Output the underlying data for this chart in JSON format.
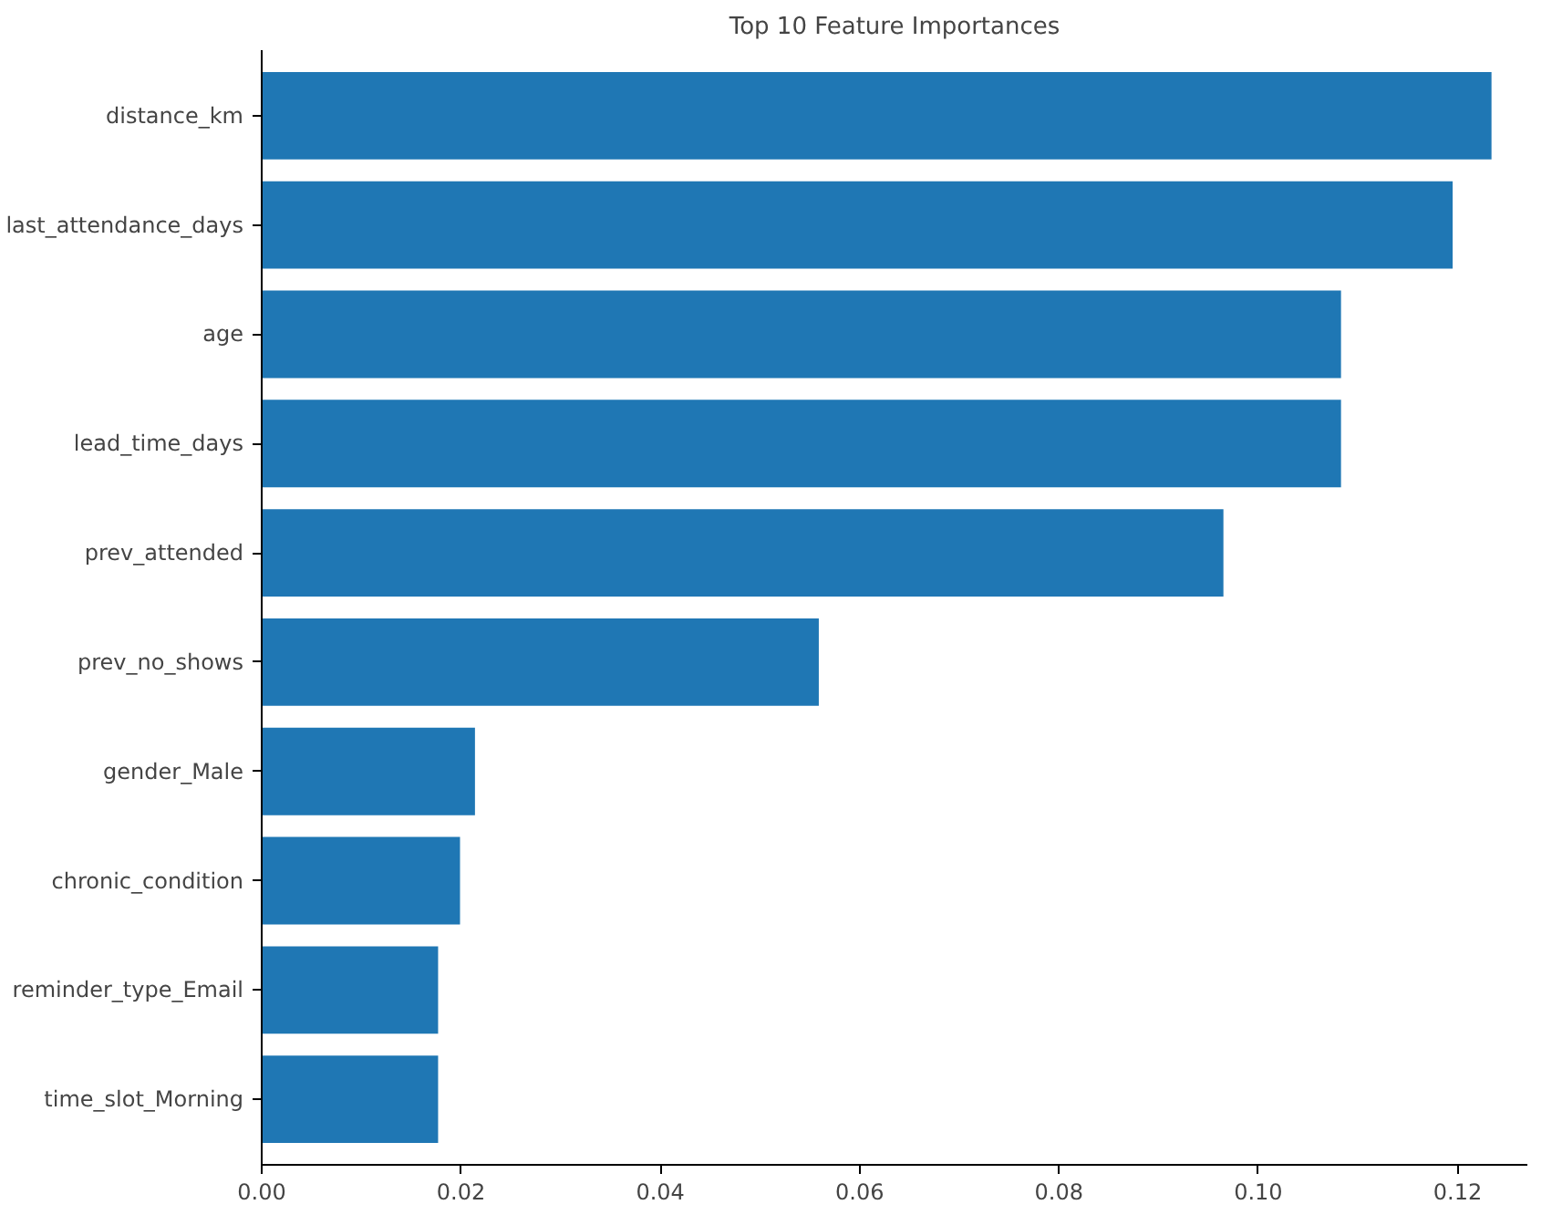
{
  "chart_data": {
    "type": "bar",
    "orientation": "horizontal",
    "title": "Top 10 Feature Importances",
    "categories": [
      "distance_km",
      "last_attendance_days",
      "age",
      "lead_time_days",
      "prev_attended",
      "prev_no_shows",
      "gender_Male",
      "chronic_condition",
      "reminder_type_Email",
      "time_slot_Morning"
    ],
    "values": [
      0.1234,
      0.1195,
      0.1083,
      0.1083,
      0.0965,
      0.0559,
      0.0214,
      0.0199,
      0.0177,
      0.0177
    ],
    "color": "#1f77b4",
    "xlim": [
      0,
      0.127
    ],
    "xticks": [
      {
        "value": 0,
        "label": "0.00"
      },
      {
        "value": 0.02,
        "label": "0.02"
      },
      {
        "value": 0.04,
        "label": "0.04"
      },
      {
        "value": 0.06,
        "label": "0.06"
      },
      {
        "value": 0.08,
        "label": "0.08"
      },
      {
        "value": 0.1,
        "label": "0.10"
      },
      {
        "value": 0.12,
        "label": "0.12"
      }
    ],
    "grid": false
  }
}
